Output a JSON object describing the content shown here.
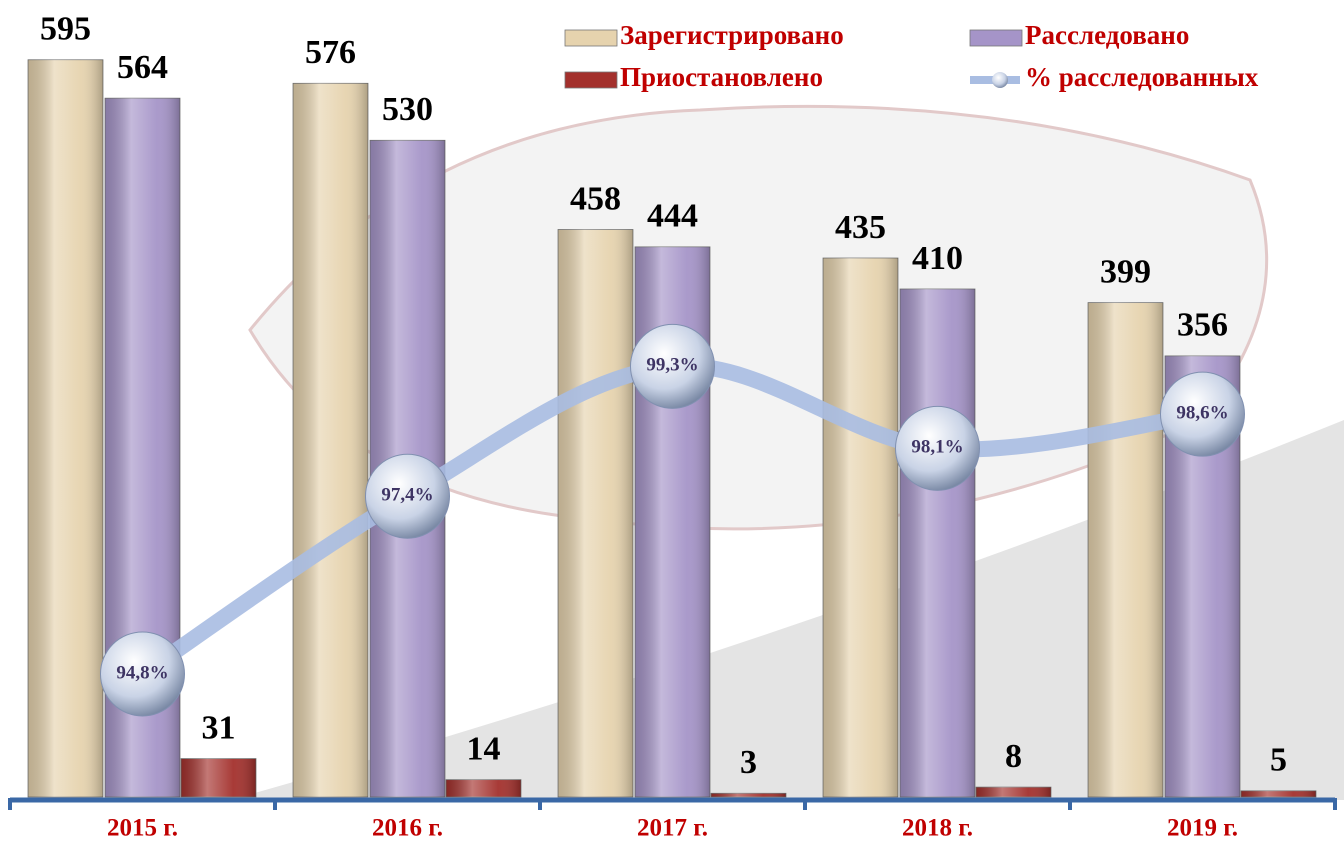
{
  "chart_data": {
    "type": "bar",
    "categories": [
      "2015 г.",
      "2016 г.",
      "2017 г.",
      "2018 г.",
      "2019 г."
    ],
    "series": [
      {
        "name": "Зарегистрировано",
        "color": "#e6d3ae",
        "values": [
          595,
          576,
          458,
          435,
          399
        ]
      },
      {
        "name": "Расследовано",
        "color": "#a594c8",
        "values": [
          564,
          530,
          444,
          410,
          356
        ]
      },
      {
        "name": "Приостановлено",
        "color": "#a3302c",
        "values": [
          31,
          14,
          3,
          8,
          5
        ]
      },
      {
        "name": "% расследованных",
        "color": "#a9bde2",
        "type": "line",
        "axis": "y2",
        "values": [
          94.8,
          97.4,
          99.3,
          98.1,
          98.6
        ],
        "value_labels": [
          "94,8%",
          "97,4%",
          "99,3%",
          "98,1%",
          "98,6%"
        ]
      }
    ],
    "ylim": [
      0,
      640
    ],
    "y2lim": [
      93,
      104.6
    ]
  }
}
